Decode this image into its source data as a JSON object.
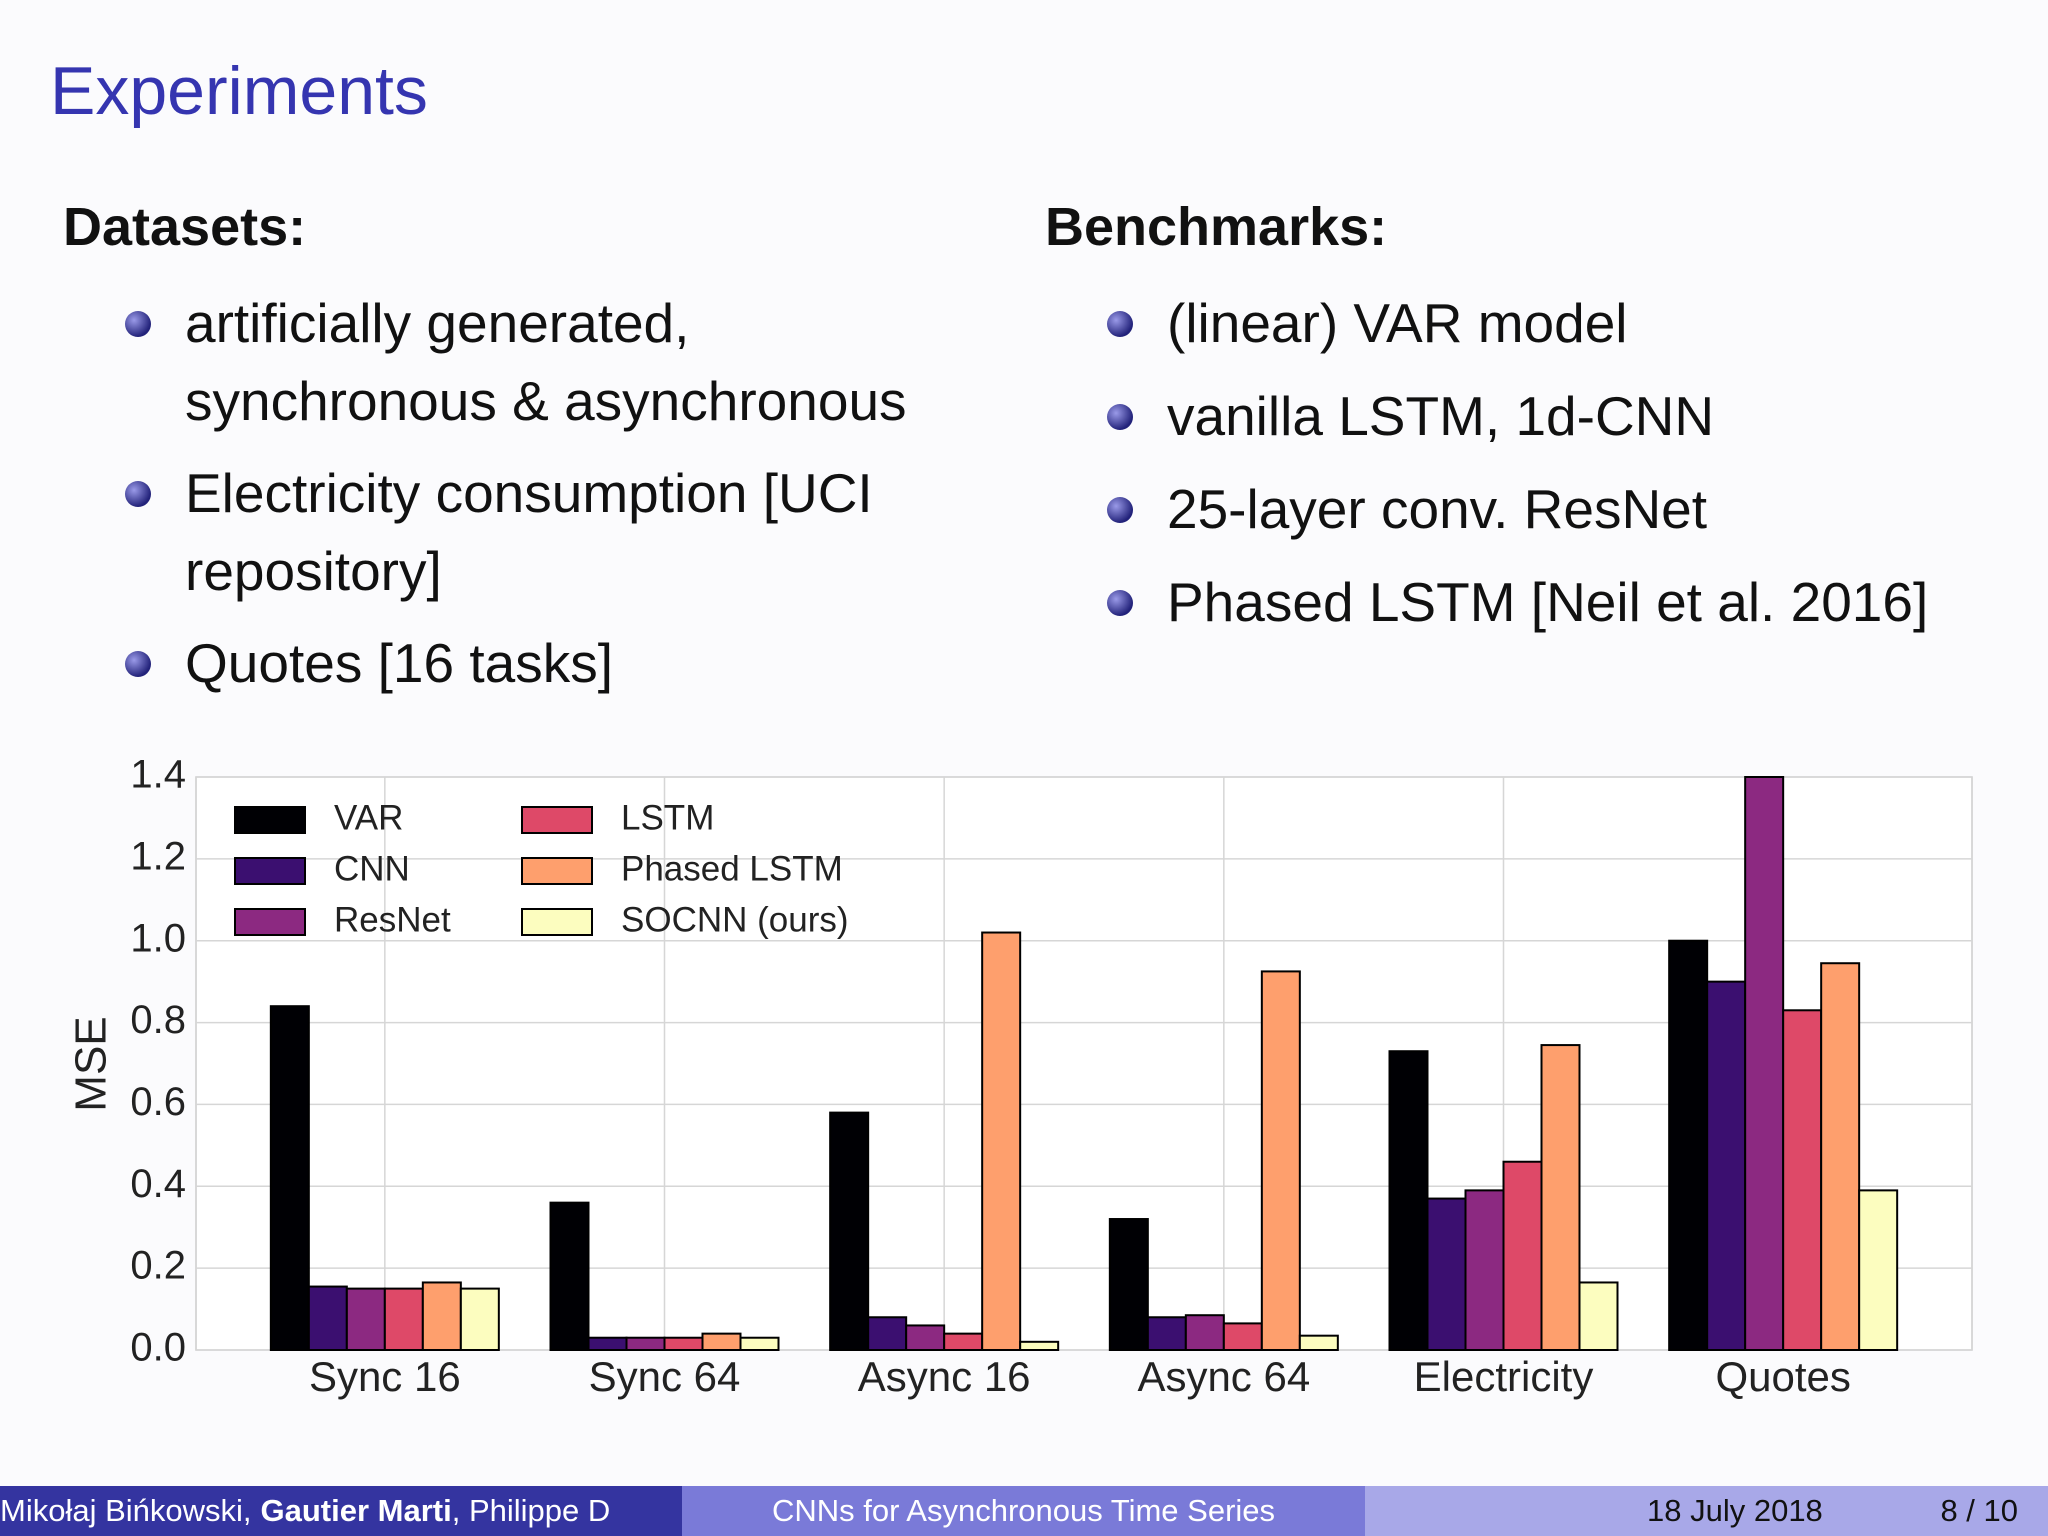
{
  "title": "Experiments",
  "left": {
    "heading": "Datasets:",
    "items": [
      "artificially generated, synchronous & asynchronous",
      "Electricity consumption [UCI repository]",
      "Quotes [16 tasks]"
    ]
  },
  "right": {
    "heading": "Benchmarks:",
    "items": [
      "(linear) VAR model",
      "vanilla LSTM, 1d-CNN",
      "25-layer conv. ResNet",
      "Phased LSTM [Neil et al. 2016]"
    ]
  },
  "chart_data": {
    "type": "bar",
    "ylabel": "MSE",
    "categories": [
      "Sync 16",
      "Sync 64",
      "Async 16",
      "Async 64",
      "Electricity",
      "Quotes"
    ],
    "series": [
      {
        "name": "VAR",
        "color": "#000004",
        "values": [
          0.84,
          0.36,
          0.58,
          0.32,
          0.73,
          1.0
        ]
      },
      {
        "name": "CNN",
        "color": "#3b0f70",
        "values": [
          0.155,
          0.03,
          0.08,
          0.08,
          0.37,
          0.9
        ]
      },
      {
        "name": "ResNet",
        "color": "#8c2981",
        "values": [
          0.15,
          0.03,
          0.06,
          0.085,
          0.39,
          1.4
        ]
      },
      {
        "name": "LSTM",
        "color": "#de4968",
        "values": [
          0.15,
          0.03,
          0.04,
          0.065,
          0.46,
          0.83
        ]
      },
      {
        "name": "Phased LSTM",
        "color": "#fe9f6d",
        "values": [
          0.165,
          0.04,
          1.02,
          0.925,
          0.745,
          0.945
        ]
      },
      {
        "name": "SOCNN (ours)",
        "color": "#fcfdbf",
        "values": [
          0.15,
          0.03,
          0.02,
          0.035,
          0.165,
          0.39
        ]
      }
    ],
    "ylim": [
      0,
      1.4
    ],
    "yticks": [
      {
        "value": 0,
        "label": "0.0"
      },
      0.2,
      0.4,
      0.6,
      0.8,
      {
        "value": 1,
        "label": "1.0"
      },
      1.2,
      1.4
    ],
    "grid": true,
    "legend": "upper left"
  },
  "footer": {
    "authors": [
      "Mikołaj Bińkowski,",
      "Gautier Marti",
      ", Philippe D"
    ],
    "talk": "CNNs for Asynchronous Time Series",
    "date": "18 July 2018",
    "page": "8 / 10"
  }
}
